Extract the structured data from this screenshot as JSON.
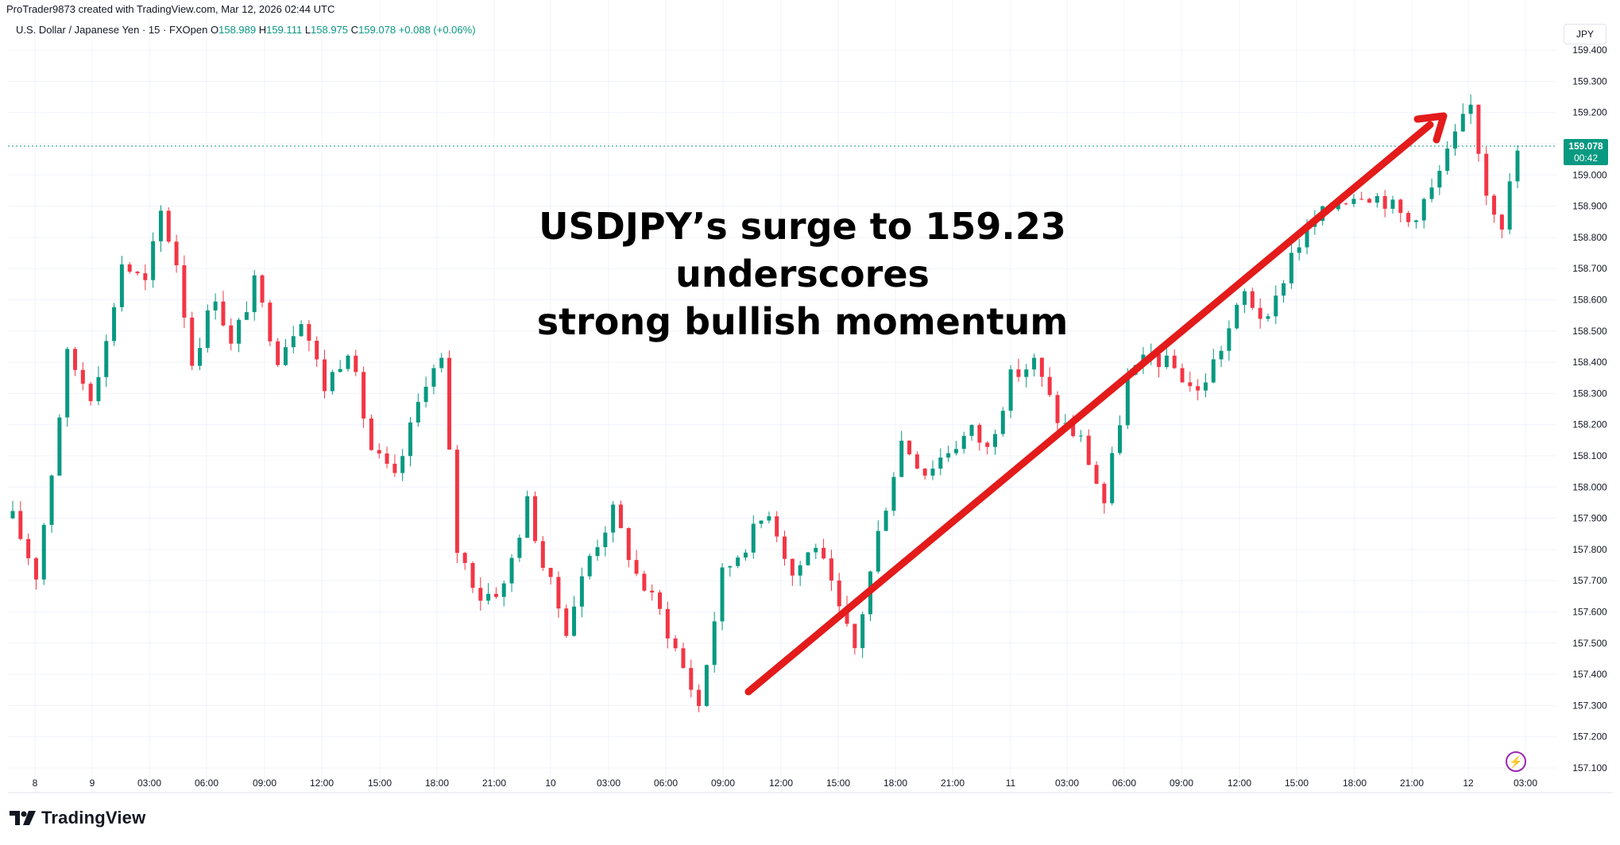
{
  "header": {
    "attribution": "ProTrader9873 created with TradingView.com, Mar 12, 2026 02:44 UTC"
  },
  "legend": {
    "symbol": "U.S. Dollar / Japanese Yen · 15 · FXOpen",
    "open_label": "O",
    "open": "158.989",
    "high_label": "H",
    "high": "159.111",
    "low_label": "L",
    "low": "158.975",
    "close_label": "C",
    "close": "159.078",
    "change": "+0.088 (+0.06%)"
  },
  "currency": "JPY",
  "last_price": {
    "price": "159.078",
    "countdown": "00:42"
  },
  "headline": {
    "line1": "USDJPY’s surge to 159.23 underscores",
    "line2": "strong bullish momentum"
  },
  "watermark": {
    "brand": "TradingView"
  },
  "colors": {
    "up": "#089981",
    "down": "#f23645",
    "arrow": "#e31b1b",
    "grid": "#f0f3fa"
  },
  "chart_data": {
    "type": "candlestick",
    "title": "",
    "y_axis": {
      "ticks": [
        "157.100",
        "157.200",
        "157.300",
        "157.400",
        "157.500",
        "157.600",
        "157.700",
        "157.800",
        "157.900",
        "158.000",
        "158.100",
        "158.200",
        "158.300",
        "158.400",
        "158.500",
        "158.600",
        "158.700",
        "158.800",
        "158.900",
        "159.000",
        "159.100",
        "159.200",
        "159.300",
        "159.400"
      ],
      "ylim": [
        157.07,
        159.45
      ]
    },
    "x_axis": {
      "ticks": [
        "8",
        "9",
        "03:00",
        "06:00",
        "09:00",
        "12:00",
        "15:00",
        "18:00",
        "21:00",
        "10",
        "03:00",
        "06:00",
        "09:00",
        "12:00",
        "15:00",
        "18:00",
        "21:00",
        "11",
        "03:00",
        "06:00",
        "09:00",
        "12:00",
        "15:00",
        "18:00",
        "21:00",
        "12",
        "03:00"
      ]
    },
    "path": [
      [
        0,
        157.9
      ],
      [
        3,
        157.72
      ],
      [
        5,
        158.05
      ],
      [
        7,
        158.42
      ],
      [
        10,
        158.3
      ],
      [
        12,
        158.46
      ],
      [
        14,
        158.72
      ],
      [
        17,
        158.65
      ],
      [
        19,
        158.88
      ],
      [
        21,
        158.72
      ],
      [
        23,
        158.4
      ],
      [
        26,
        158.62
      ],
      [
        28,
        158.45
      ],
      [
        31,
        158.65
      ],
      [
        34,
        158.42
      ],
      [
        37,
        158.55
      ],
      [
        40,
        158.32
      ],
      [
        43,
        158.45
      ],
      [
        46,
        158.12
      ],
      [
        49,
        158.02
      ],
      [
        53,
        158.35
      ],
      [
        55,
        158.4
      ],
      [
        57,
        157.8
      ],
      [
        60,
        157.65
      ],
      [
        63,
        157.68
      ],
      [
        66,
        157.95
      ],
      [
        68,
        157.75
      ],
      [
        71,
        157.55
      ],
      [
        74,
        157.78
      ],
      [
        77,
        157.92
      ],
      [
        80,
        157.72
      ],
      [
        83,
        157.6
      ],
      [
        86,
        157.42
      ],
      [
        88,
        157.3
      ],
      [
        91,
        157.72
      ],
      [
        94,
        157.82
      ],
      [
        97,
        157.93
      ],
      [
        100,
        157.72
      ],
      [
        103,
        157.82
      ],
      [
        106,
        157.6
      ],
      [
        108,
        157.48
      ],
      [
        111,
        157.85
      ],
      [
        114,
        158.15
      ],
      [
        117,
        158.05
      ],
      [
        120,
        158.12
      ],
      [
        123,
        158.18
      ],
      [
        125,
        158.12
      ],
      [
        128,
        158.35
      ],
      [
        131,
        158.4
      ],
      [
        134,
        158.22
      ],
      [
        137,
        158.15
      ],
      [
        140,
        157.95
      ],
      [
        143,
        158.35
      ],
      [
        146,
        158.42
      ],
      [
        149,
        158.38
      ],
      [
        152,
        158.3
      ],
      [
        155,
        158.45
      ],
      [
        158,
        158.62
      ],
      [
        161,
        158.52
      ],
      [
        164,
        158.75
      ],
      [
        167,
        158.85
      ],
      [
        170,
        158.92
      ],
      [
        173,
        158.95
      ],
      [
        176,
        158.92
      ],
      [
        179,
        158.85
      ],
      [
        182,
        158.95
      ],
      [
        185,
        159.12
      ],
      [
        187,
        159.22
      ],
      [
        189,
        158.95
      ],
      [
        191,
        158.85
      ],
      [
        193,
        159.078
      ]
    ]
  }
}
